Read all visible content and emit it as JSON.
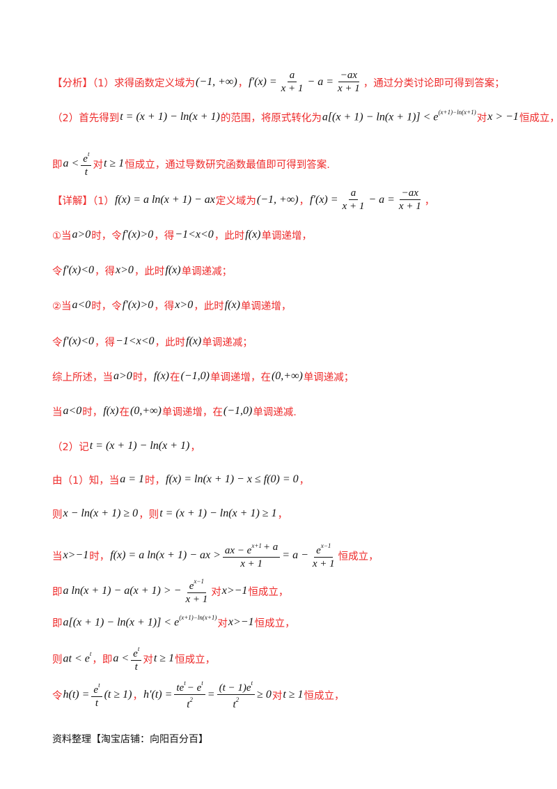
{
  "lines": [
    [
      {
        "c": "【分析】（1）求得函数定义域为"
      },
      {
        "m": "(−1, +∞)"
      },
      {
        "c": "，"
      },
      {
        "m": "f′(x) ="
      },
      {
        "n": [
          {
            "m": "a"
          }
        ],
        "d": [
          {
            "m": "x + 1"
          }
        ]
      },
      {
        "m": "− a ="
      },
      {
        "n": [
          {
            "m": "−ax"
          }
        ],
        "d": [
          {
            "m": "x + 1"
          }
        ]
      },
      {
        "c": "，通过分类讨论即可得到答案；"
      }
    ],
    [
      {
        "c": "（2）首先得到"
      },
      {
        "m": "t = (x + 1) − ln(x + 1)"
      },
      {
        "c": "的范围，将原式转化为"
      },
      {
        "m": "a[(x + 1) − ln(x + 1)] < e",
        "s": "(x+1)−ln(x+1)"
      },
      {
        "c": "对"
      },
      {
        "m": "x > −1"
      },
      {
        "c": "恒成立，"
      }
    ],
    [
      {
        "c": "即"
      },
      {
        "m": "a <"
      },
      {
        "n": [
          {
            "m": "e",
            "s": "t"
          }
        ],
        "d": [
          {
            "m": "t"
          }
        ]
      },
      {
        "c": "对"
      },
      {
        "m": "t ≥ 1"
      },
      {
        "c": "恒成立，通过导数研究函数最值即可得到答案."
      }
    ],
    [
      {
        "c": "【详解】（1）"
      },
      {
        "m": "f(x) = a ln(x + 1) − ax"
      },
      {
        "c": "定义域为"
      },
      {
        "m": "(−1, +∞)"
      },
      {
        "c": "，"
      },
      {
        "m": "f′(x) ="
      },
      {
        "n": [
          {
            "m": "a"
          }
        ],
        "d": [
          {
            "m": "x + 1"
          }
        ]
      },
      {
        "m": "− a ="
      },
      {
        "n": [
          {
            "m": "−ax"
          }
        ],
        "d": [
          {
            "m": "x + 1"
          }
        ]
      },
      {
        "c": "，"
      }
    ],
    [
      {
        "c": "①当"
      },
      {
        "m": "a>0"
      },
      {
        "c": "时，令"
      },
      {
        "m": "f′(x)>0"
      },
      {
        "c": "，得"
      },
      {
        "m": "−1<x<0"
      },
      {
        "c": "，此时"
      },
      {
        "m": "f(x)"
      },
      {
        "c": "单调递增，"
      }
    ],
    [
      {
        "c": "令"
      },
      {
        "m": "f′(x)<0"
      },
      {
        "c": "，得"
      },
      {
        "m": "x>0"
      },
      {
        "c": "，此时"
      },
      {
        "m": "f(x)"
      },
      {
        "c": "单调递减；"
      }
    ],
    [
      {
        "c": "②当"
      },
      {
        "m": "a<0"
      },
      {
        "c": "时，令"
      },
      {
        "m": "f′(x)>0"
      },
      {
        "c": "，得"
      },
      {
        "m": "x>0"
      },
      {
        "c": "，此时"
      },
      {
        "m": "f(x)"
      },
      {
        "c": "单调递增，"
      }
    ],
    [
      {
        "c": "令"
      },
      {
        "m": "f′(x)<0"
      },
      {
        "c": "，得"
      },
      {
        "m": "−1<x<0"
      },
      {
        "c": "，此时"
      },
      {
        "m": "f(x)"
      },
      {
        "c": "单调递减；"
      }
    ],
    [
      {
        "c": "综上所述，当"
      },
      {
        "m": "a>0"
      },
      {
        "c": "时，"
      },
      {
        "m": "f(x)"
      },
      {
        "c": "在"
      },
      {
        "m": "(−1,0)"
      },
      {
        "c": "单调递增，在"
      },
      {
        "m": "(0,+∞)"
      },
      {
        "c": "单调递减；"
      }
    ],
    [
      {
        "c": "当"
      },
      {
        "m": "a<0"
      },
      {
        "c": "时，"
      },
      {
        "m": "f(x)"
      },
      {
        "c": "在"
      },
      {
        "m": "(0,+∞)"
      },
      {
        "c": "单调递增，在"
      },
      {
        "m": "(−1,0)"
      },
      {
        "c": "单调递减."
      }
    ],
    [
      {
        "c": "（2）记"
      },
      {
        "m": "t = (x + 1) − ln(x + 1)"
      },
      {
        "c": "，"
      }
    ],
    [
      {
        "c": "由（1）知，当"
      },
      {
        "m": "a = 1"
      },
      {
        "c": "时，"
      },
      {
        "m": "f(x) = ln(x + 1) − x ≤ f(0) = 0"
      },
      {
        "c": "，"
      }
    ],
    [
      {
        "c": "则"
      },
      {
        "m": "x − ln(x + 1) ≥ 0"
      },
      {
        "c": "，则"
      },
      {
        "m": "t = (x + 1) − ln(x + 1) ≥ 1"
      },
      {
        "c": "，"
      }
    ],
    [
      {
        "c": "当"
      },
      {
        "m": "x>−1"
      },
      {
        "c": "时，"
      },
      {
        "m": "f(x) = a ln(x + 1) − ax >"
      },
      {
        "n": [
          {
            "m": "ax − e",
            "s": "x+1"
          },
          {
            "m": "+ a"
          }
        ],
        "d": [
          {
            "m": "x + 1"
          }
        ]
      },
      {
        "m": "= a −"
      },
      {
        "n": [
          {
            "m": "e",
            "s": "x−1"
          }
        ],
        "d": [
          {
            "m": "x + 1"
          }
        ]
      },
      {
        "c": "恒成立，"
      }
    ],
    [
      {
        "c": "即"
      },
      {
        "m": "a ln(x + 1) − a(x + 1) > −"
      },
      {
        "n": [
          {
            "m": "e",
            "s": "x−1"
          }
        ],
        "d": [
          {
            "m": "x + 1"
          }
        ]
      },
      {
        "c": "对"
      },
      {
        "m": "x>−1"
      },
      {
        "c": "恒成立，"
      }
    ],
    [
      {
        "c": "即"
      },
      {
        "m": "a[(x + 1) − ln(x + 1)] < e",
        "s": "(x+1)−ln(x+1)"
      },
      {
        "c": "对"
      },
      {
        "m": "x>−1"
      },
      {
        "c": "恒成立，"
      }
    ],
    [
      {
        "c": "则"
      },
      {
        "m": "at < e",
        "s": "t"
      },
      {
        "c": "，即"
      },
      {
        "m": "a <"
      },
      {
        "n": [
          {
            "m": "e",
            "s": "t"
          }
        ],
        "d": [
          {
            "m": "t"
          }
        ]
      },
      {
        "c": "对"
      },
      {
        "m": "t ≥ 1"
      },
      {
        "c": "恒成立，"
      }
    ],
    [
      {
        "c": "令"
      },
      {
        "m": "h(t) ="
      },
      {
        "n": [
          {
            "m": "e",
            "s": "t"
          }
        ],
        "d": [
          {
            "m": "t"
          }
        ]
      },
      {
        "m": "(t ≥ 1)"
      },
      {
        "c": "，"
      },
      {
        "m": "h′(t) ="
      },
      {
        "n": [
          {
            "m": "te",
            "s": "t"
          },
          {
            "m": "− e",
            "s": "t"
          }
        ],
        "d": [
          {
            "m": "t",
            "s": "2"
          }
        ]
      },
      {
        "m": "="
      },
      {
        "n": [
          {
            "m": "(t − 1)e",
            "s": "t"
          }
        ],
        "d": [
          {
            "m": "t",
            "s": "2"
          }
        ]
      },
      {
        "m": "≥ 0"
      },
      {
        "c": "对"
      },
      {
        "m": "t ≥ 1"
      },
      {
        "c": "恒成立，"
      }
    ]
  ],
  "footer": "资料整理【淘宝店铺：向阳百分百】"
}
